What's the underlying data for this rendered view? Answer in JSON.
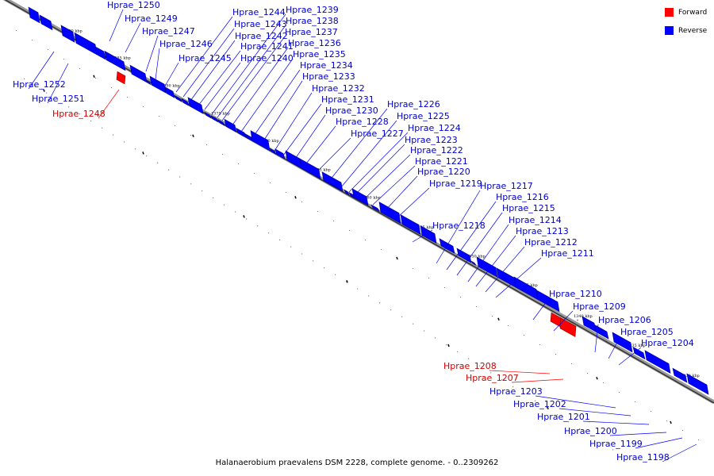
{
  "caption": "Halanaerobium praevalens DSM 2228, complete genome. - 0..2309262",
  "legend": {
    "forward_label": "Forward",
    "reverse_label": "Reverse",
    "forward_color": "#ff0000",
    "reverse_color": "#0000ff"
  },
  "strand_colors": {
    "forward": "#ff0000",
    "reverse": "#0000ff"
  },
  "label_colors": {
    "forward": "#cc0000",
    "reverse": "#0000cc"
  },
  "kbp_ticks": [
    "1390 kbp",
    "1385 kbp",
    "1380 kbp",
    "1375 kbp",
    "1370 kbp",
    "1365 kbp",
    "1360 kbp",
    "1355 kbp",
    "1350 kbp",
    "1345 kbp",
    "1340 kbp",
    "1335 kbp",
    "1330 kbp"
  ],
  "genes": [
    {
      "name": "Hprae_1252",
      "strand": "reverse"
    },
    {
      "name": "Hprae_1251",
      "strand": "reverse"
    },
    {
      "name": "Hprae_1250",
      "strand": "reverse"
    },
    {
      "name": "Hprae_1249",
      "strand": "reverse"
    },
    {
      "name": "Hprae_1248",
      "strand": "forward"
    },
    {
      "name": "Hprae_1247",
      "strand": "reverse"
    },
    {
      "name": "Hprae_1246",
      "strand": "reverse"
    },
    {
      "name": "Hprae_1245",
      "strand": "reverse"
    },
    {
      "name": "Hprae_1244",
      "strand": "reverse"
    },
    {
      "name": "Hprae_1243",
      "strand": "reverse"
    },
    {
      "name": "Hprae_1242",
      "strand": "reverse"
    },
    {
      "name": "Hprae_1241",
      "strand": "reverse"
    },
    {
      "name": "Hprae_1240",
      "strand": "reverse"
    },
    {
      "name": "Hprae_1239",
      "strand": "reverse"
    },
    {
      "name": "Hprae_1238",
      "strand": "reverse"
    },
    {
      "name": "Hprae_1237",
      "strand": "reverse"
    },
    {
      "name": "Hprae_1236",
      "strand": "reverse"
    },
    {
      "name": "Hprae_1235",
      "strand": "reverse"
    },
    {
      "name": "Hprae_1234",
      "strand": "reverse"
    },
    {
      "name": "Hprae_1233",
      "strand": "reverse"
    },
    {
      "name": "Hprae_1232",
      "strand": "reverse"
    },
    {
      "name": "Hprae_1231",
      "strand": "reverse"
    },
    {
      "name": "Hprae_1230",
      "strand": "reverse"
    },
    {
      "name": "Hprae_1228",
      "strand": "reverse"
    },
    {
      "name": "Hprae_1227",
      "strand": "reverse"
    },
    {
      "name": "Hprae_1226",
      "strand": "reverse"
    },
    {
      "name": "Hprae_1225",
      "strand": "reverse"
    },
    {
      "name": "Hprae_1224",
      "strand": "reverse"
    },
    {
      "name": "Hprae_1223",
      "strand": "reverse"
    },
    {
      "name": "Hprae_1222",
      "strand": "reverse"
    },
    {
      "name": "Hprae_1221",
      "strand": "reverse"
    },
    {
      "name": "Hprae_1220",
      "strand": "reverse"
    },
    {
      "name": "Hprae_1219",
      "strand": "reverse"
    },
    {
      "name": "Hprae_1218",
      "strand": "reverse"
    },
    {
      "name": "Hprae_1217",
      "strand": "reverse"
    },
    {
      "name": "Hprae_1216",
      "strand": "reverse"
    },
    {
      "name": "Hprae_1215",
      "strand": "reverse"
    },
    {
      "name": "Hprae_1214",
      "strand": "reverse"
    },
    {
      "name": "Hprae_1213",
      "strand": "reverse"
    },
    {
      "name": "Hprae_1212",
      "strand": "reverse"
    },
    {
      "name": "Hprae_1211",
      "strand": "reverse"
    },
    {
      "name": "Hprae_1210",
      "strand": "reverse"
    },
    {
      "name": "Hprae_1209",
      "strand": "reverse"
    },
    {
      "name": "Hprae_1208",
      "strand": "forward"
    },
    {
      "name": "Hprae_1207",
      "strand": "forward"
    },
    {
      "name": "Hprae_1206",
      "strand": "reverse"
    },
    {
      "name": "Hprae_1205",
      "strand": "reverse"
    },
    {
      "name": "Hprae_1204",
      "strand": "reverse"
    },
    {
      "name": "Hprae_1203",
      "strand": "reverse"
    },
    {
      "name": "Hprae_1202",
      "strand": "reverse"
    },
    {
      "name": "Hprae_1201",
      "strand": "reverse"
    },
    {
      "name": "Hprae_1200",
      "strand": "reverse"
    },
    {
      "name": "Hprae_1199",
      "strand": "reverse"
    },
    {
      "name": "Hprae_1198",
      "strand": "reverse"
    }
  ]
}
